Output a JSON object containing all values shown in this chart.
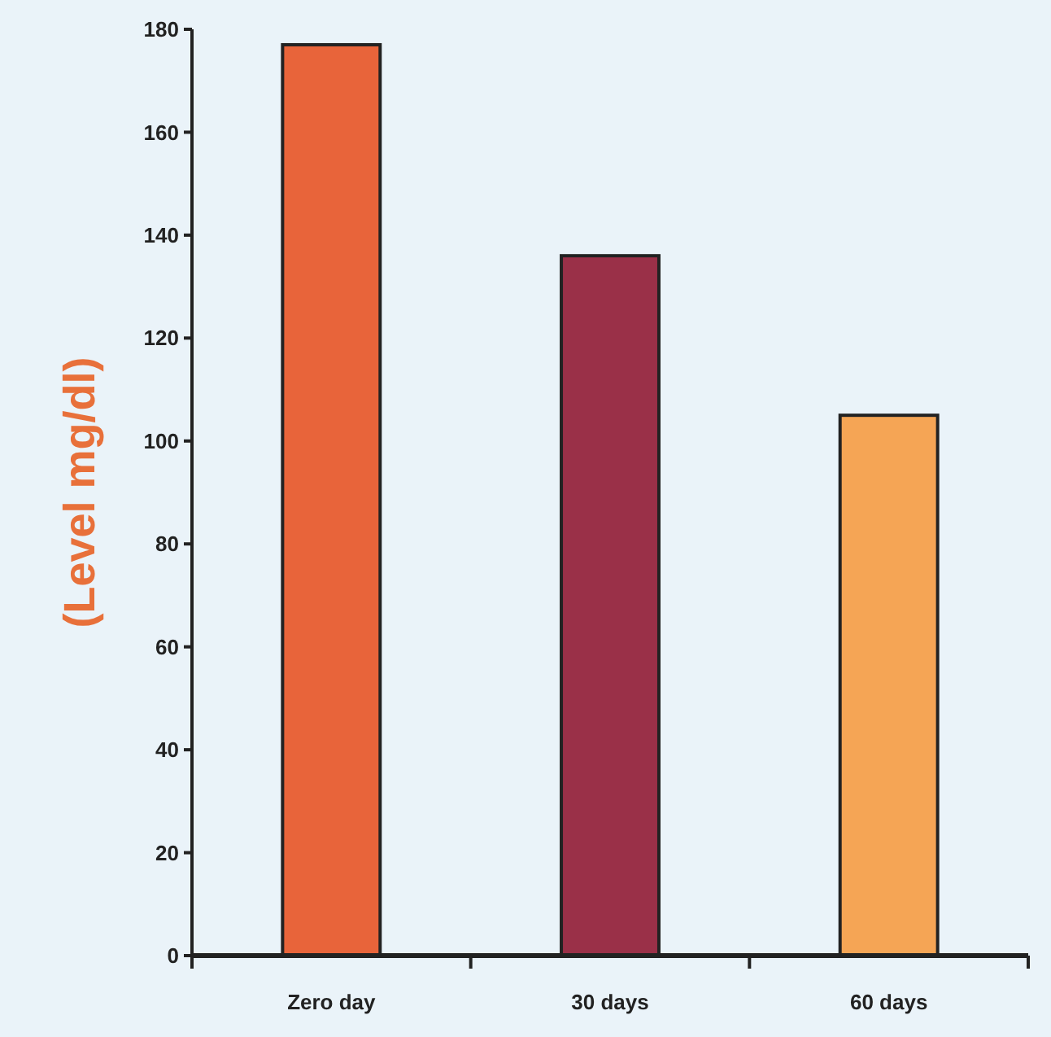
{
  "chart_data": {
    "type": "bar",
    "ylabel": "(Level mg/dl)",
    "categories": [
      "Zero day",
      "30 days",
      "60 days"
    ],
    "values": [
      177,
      136,
      105
    ],
    "colors": [
      "#e8643a",
      "#9a3048",
      "#f5a555"
    ],
    "ylim": [
      0,
      180
    ],
    "yticks": [
      0,
      20,
      40,
      60,
      80,
      100,
      120,
      140,
      160,
      180
    ],
    "grid": false
  }
}
